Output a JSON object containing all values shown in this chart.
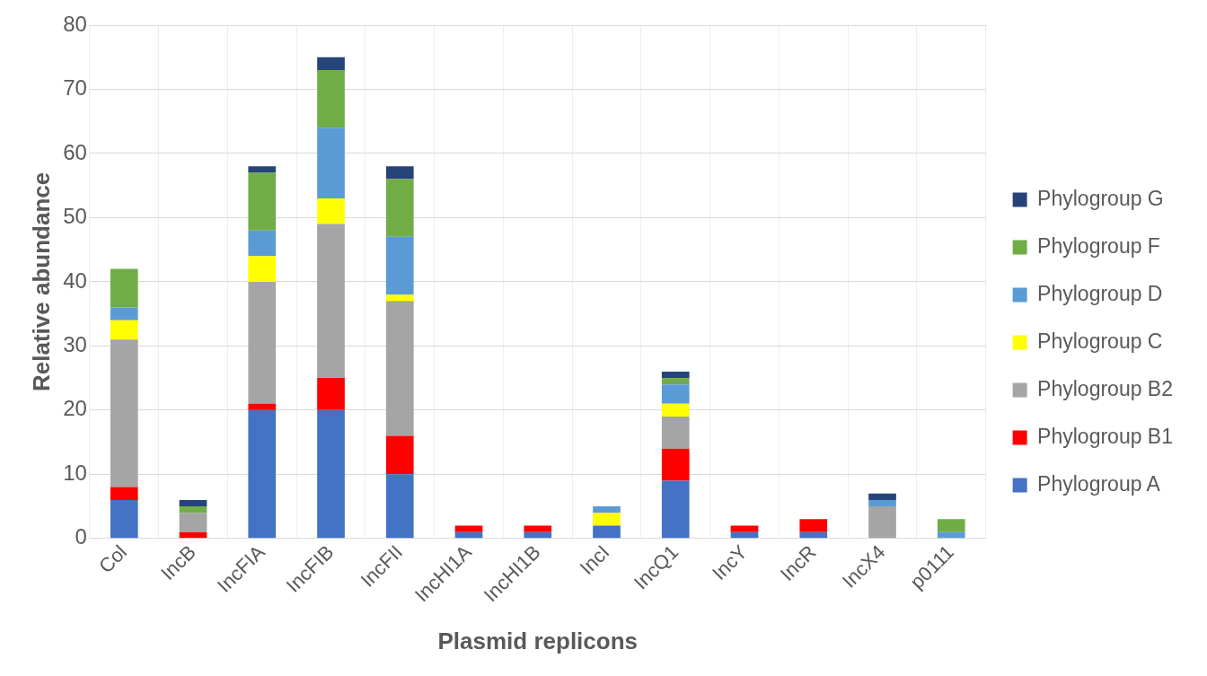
{
  "chart_data": {
    "type": "bar",
    "stacked": true,
    "xlabel": "Plasmid replicons",
    "ylabel": "Relative abundance",
    "categories": [
      "Col",
      "IncB",
      "IncFIA",
      "IncFIB",
      "IncFII",
      "IncHI1A",
      "IncHI1B",
      "IncI",
      "IncQ1",
      "IncY",
      "IncR",
      "IncX4",
      "p0111"
    ],
    "series": [
      {
        "name": "Phylogroup A",
        "color": "#4472c4",
        "values": [
          6,
          0,
          20,
          20,
          10,
          1,
          1,
          2,
          9,
          1,
          1,
          0,
          0
        ]
      },
      {
        "name": "Phylogroup B1",
        "color": "#ff0000",
        "values": [
          2,
          1,
          1,
          5,
          6,
          1,
          1,
          0,
          5,
          1,
          2,
          0,
          0
        ]
      },
      {
        "name": "Phylogroup B2",
        "color": "#a5a5a5",
        "values": [
          23,
          3,
          19,
          24,
          21,
          0,
          0,
          0,
          5,
          0,
          0,
          5,
          0
        ]
      },
      {
        "name": "Phylogroup C",
        "color": "#ffff00",
        "values": [
          3,
          0,
          4,
          4,
          1,
          0,
          0,
          2,
          2,
          0,
          0,
          0,
          0
        ]
      },
      {
        "name": "Phylogroup D",
        "color": "#5b9bd5",
        "values": [
          2,
          0,
          4,
          11,
          9,
          0,
          0,
          1,
          3,
          0,
          0,
          1,
          1
        ]
      },
      {
        "name": "Phylogroup F",
        "color": "#70ad47",
        "values": [
          6,
          1,
          9,
          9,
          9,
          0,
          0,
          0,
          1,
          0,
          0,
          0,
          2
        ]
      },
      {
        "name": "Phylogroup G",
        "color": "#264478",
        "values": [
          0,
          1,
          1,
          2,
          2,
          0,
          0,
          0,
          1,
          0,
          0,
          1,
          0
        ]
      }
    ],
    "ylim": [
      0,
      80
    ],
    "yticks": [
      0,
      10,
      20,
      30,
      40,
      50,
      60,
      70,
      80
    ],
    "grid": true,
    "legend": "right"
  }
}
